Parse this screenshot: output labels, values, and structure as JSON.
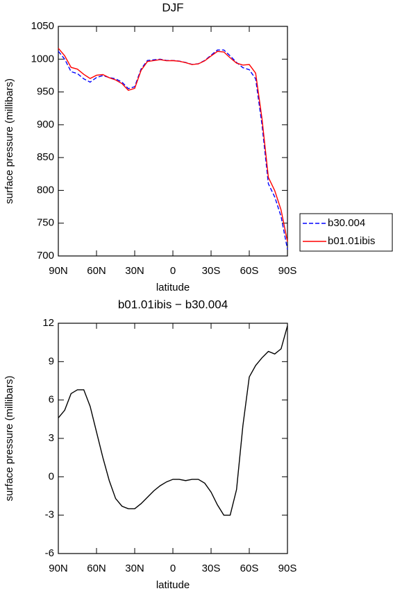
{
  "chart_data": [
    {
      "type": "line",
      "title": "DJF",
      "xlabel": "latitude",
      "ylabel": "surface pressure (millibars)",
      "x": [
        90,
        85,
        80,
        75,
        70,
        65,
        60,
        55,
        50,
        45,
        40,
        35,
        30,
        25,
        20,
        15,
        10,
        5,
        0,
        -5,
        -10,
        -15,
        -20,
        -25,
        -30,
        -35,
        -40,
        -45,
        -50,
        -55,
        -60,
        -65,
        -70,
        -75,
        -80,
        -85,
        -90
      ],
      "series": [
        {
          "name": "b30.004",
          "color": "#0000ff",
          "linestyle": "dashed",
          "values": [
            1012,
            1000,
            981,
            978,
            970,
            965,
            972,
            975,
            972,
            970,
            965,
            955,
            958,
            985,
            998,
            999,
            1000,
            998,
            998,
            997,
            995,
            992,
            993,
            998,
            1006,
            1014,
            1014,
            1005,
            995,
            987,
            984,
            970,
            900,
            810,
            790,
            760,
            710
          ]
        },
        {
          "name": "b01.01ibis",
          "color": "#ff0000",
          "linestyle": "solid",
          "values": [
            1016.6,
            1005.2,
            987.5,
            984.8,
            976.8,
            970.5,
            975.5,
            976.5,
            971.7,
            968.3,
            962.7,
            952.5,
            955.5,
            982.9,
            996.4,
            997.9,
            999.3,
            997.6,
            997.8,
            996.8,
            994.7,
            991.8,
            992.8,
            997.5,
            1004.8,
            1011.8,
            1011,
            1002,
            994,
            991,
            991.8,
            978.7,
            909.3,
            819.8,
            799.6,
            770,
            721.8
          ]
        }
      ],
      "xlim": [
        90,
        -90
      ],
      "xticks": [
        {
          "value": 90,
          "label": "90N"
        },
        {
          "value": 60,
          "label": "60N"
        },
        {
          "value": 30,
          "label": "30N"
        },
        0,
        {
          "value": -30,
          "label": "30S"
        },
        {
          "value": -60,
          "label": "60S"
        },
        {
          "value": -90,
          "label": "90S"
        }
      ],
      "ylim": [
        700,
        1050
      ],
      "yticks": [
        700,
        750,
        800,
        850,
        900,
        950,
        1000,
        1050
      ],
      "legend": "right"
    },
    {
      "type": "line",
      "title": "b01.01ibis − b30.004",
      "xlabel": "latitude",
      "ylabel": "surface pressure (millibars)",
      "x": [
        90,
        85,
        80,
        75,
        70,
        65,
        60,
        55,
        50,
        45,
        40,
        35,
        30,
        25,
        20,
        15,
        10,
        5,
        0,
        -5,
        -10,
        -15,
        -20,
        -25,
        -30,
        -35,
        -40,
        -45,
        -50,
        -55,
        -60,
        -65,
        -70,
        -75,
        -80,
        -85,
        -90
      ],
      "values": [
        4.6,
        5.2,
        6.5,
        6.8,
        6.8,
        5.5,
        3.5,
        1.5,
        -0.3,
        -1.7,
        -2.3,
        -2.5,
        -2.5,
        -2.1,
        -1.6,
        -1.1,
        -0.7,
        -0.4,
        -0.2,
        -0.2,
        -0.3,
        -0.2,
        -0.2,
        -0.5,
        -1.2,
        -2.2,
        -3.0,
        -3.0,
        -1.0,
        4.0,
        7.8,
        8.7,
        9.3,
        9.8,
        9.6,
        10.0,
        11.8
      ],
      "color": "#000000",
      "xlim": [
        90,
        -90
      ],
      "xticks": [
        {
          "value": 90,
          "label": "90N"
        },
        {
          "value": 60,
          "label": "60N"
        },
        {
          "value": 30,
          "label": "30N"
        },
        0,
        {
          "value": -30,
          "label": "30S"
        },
        {
          "value": -60,
          "label": "60S"
        },
        {
          "value": -90,
          "label": "90S"
        }
      ],
      "ylim": [
        -6,
        12
      ],
      "yticks": [
        -6,
        -3,
        0,
        3,
        6,
        9,
        12
      ]
    }
  ]
}
